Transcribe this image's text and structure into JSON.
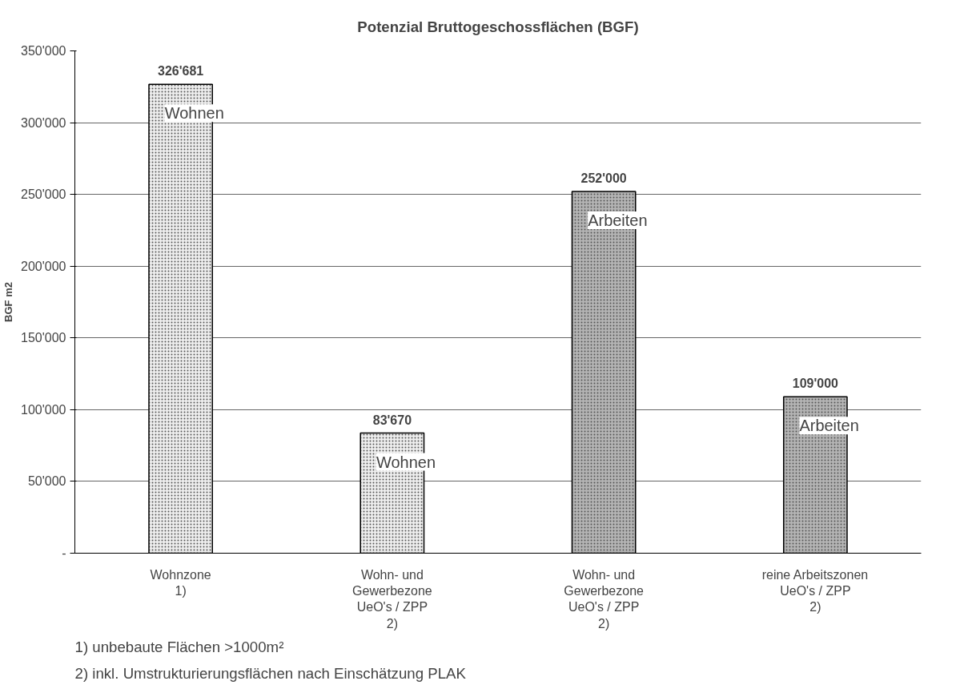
{
  "chart_data": {
    "type": "bar",
    "title": "Potenzial Bruttogeschossflächen (BGF)",
    "ylabel": "BGF m2",
    "categories": [
      "Wohnzone\n1)",
      "Wohn- und\nGewerbezone\nUeO's / ZPP\n2)",
      "Wohn- und\nGewerbezone\nUeO's / ZPP\n2)",
      "reine Arbeitszonen\nUeO's / ZPP\n2)"
    ],
    "values": [
      326681,
      83670,
      252000,
      109000
    ],
    "value_labels": [
      "326'681",
      "83'670",
      "252'000",
      "109'000"
    ],
    "colors": [
      "#eeeeee",
      "#eeeeee",
      "#b4b4b4",
      "#b4b4b4"
    ],
    "ylim": [
      0,
      350000
    ],
    "yticks": [
      {
        "value": 0,
        "label": "-"
      },
      {
        "value": 50000,
        "label": "50'000"
      },
      {
        "value": 100000,
        "label": "100'000"
      },
      {
        "value": 150000,
        "label": "150'000"
      },
      {
        "value": 200000,
        "label": "200'000"
      },
      {
        "value": 250000,
        "label": "250'000"
      },
      {
        "value": 300000,
        "label": "300'000"
      },
      {
        "value": 350000,
        "label": "350'000"
      }
    ],
    "grid": "y",
    "annotations": [
      "Wohnen",
      "Wohnen",
      "Arbeiten",
      "Arbeiten",
      "1) unbebaute Flächen >1000m²",
      "2) inkl. Umstrukturierungsflächen nach Einschätzung PLAK"
    ]
  }
}
